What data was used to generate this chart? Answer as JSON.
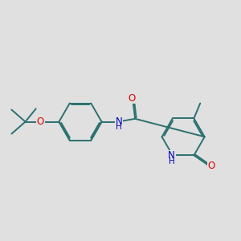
{
  "bg_color": "#e0e0e0",
  "bond_color": "#2d7070",
  "bond_width": 1.4,
  "atom_colors": {
    "O": "#dd0000",
    "N": "#0000bb",
    "C": "#2d7070"
  },
  "font_size_atom": 8.5,
  "font_size_sub": 7.0
}
